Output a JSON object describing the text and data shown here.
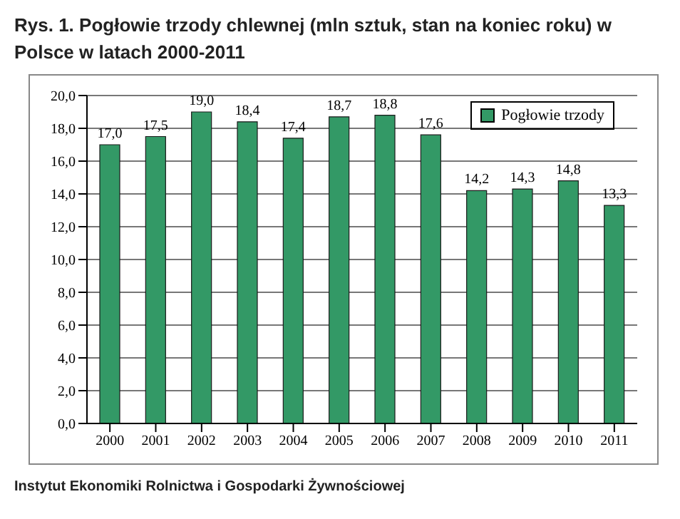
{
  "chart_data": {
    "type": "bar",
    "title": "Rys. 1. Pogłowie trzody chlewnej (mln sztuk, stan na koniec roku) w Polsce w latach 2000-2011",
    "categories": [
      "2000",
      "2001",
      "2002",
      "2003",
      "2004",
      "2005",
      "2006",
      "2007",
      "2008",
      "2009",
      "2010",
      "2011"
    ],
    "series": [
      {
        "name": "Pogłowie trzody",
        "color": "#339966",
        "values": [
          17.0,
          17.5,
          19.0,
          18.4,
          17.4,
          18.7,
          18.8,
          17.6,
          14.2,
          14.3,
          14.8,
          13.3
        ],
        "value_labels": [
          "17,0",
          "17,5",
          "19,0",
          "18,4",
          "17,4",
          "18,7",
          "18,8",
          "17,6",
          "14,2",
          "14,3",
          "14,8",
          "13,3"
        ]
      }
    ],
    "ylim": [
      0,
      20
    ],
    "yticks": [
      {
        "value": 0,
        "label": "0,0"
      },
      {
        "value": 2,
        "label": "2,0"
      },
      {
        "value": 4,
        "label": "4,0"
      },
      {
        "value": 6,
        "label": "6,0"
      },
      {
        "value": 8,
        "label": "8,0"
      },
      {
        "value": 10,
        "label": "10,0"
      },
      {
        "value": 12,
        "label": "12,0"
      },
      {
        "value": 14,
        "label": "14,0"
      },
      {
        "value": 16,
        "label": "16,0"
      },
      {
        "value": 18,
        "label": "18,0"
      },
      {
        "value": 20,
        "label": "20,0"
      }
    ],
    "grid": "y",
    "legend": "top right",
    "annotations": [
      "Instytut Ekonomiki Rolnictwa i Gospodarki Żywnościowej"
    ]
  }
}
